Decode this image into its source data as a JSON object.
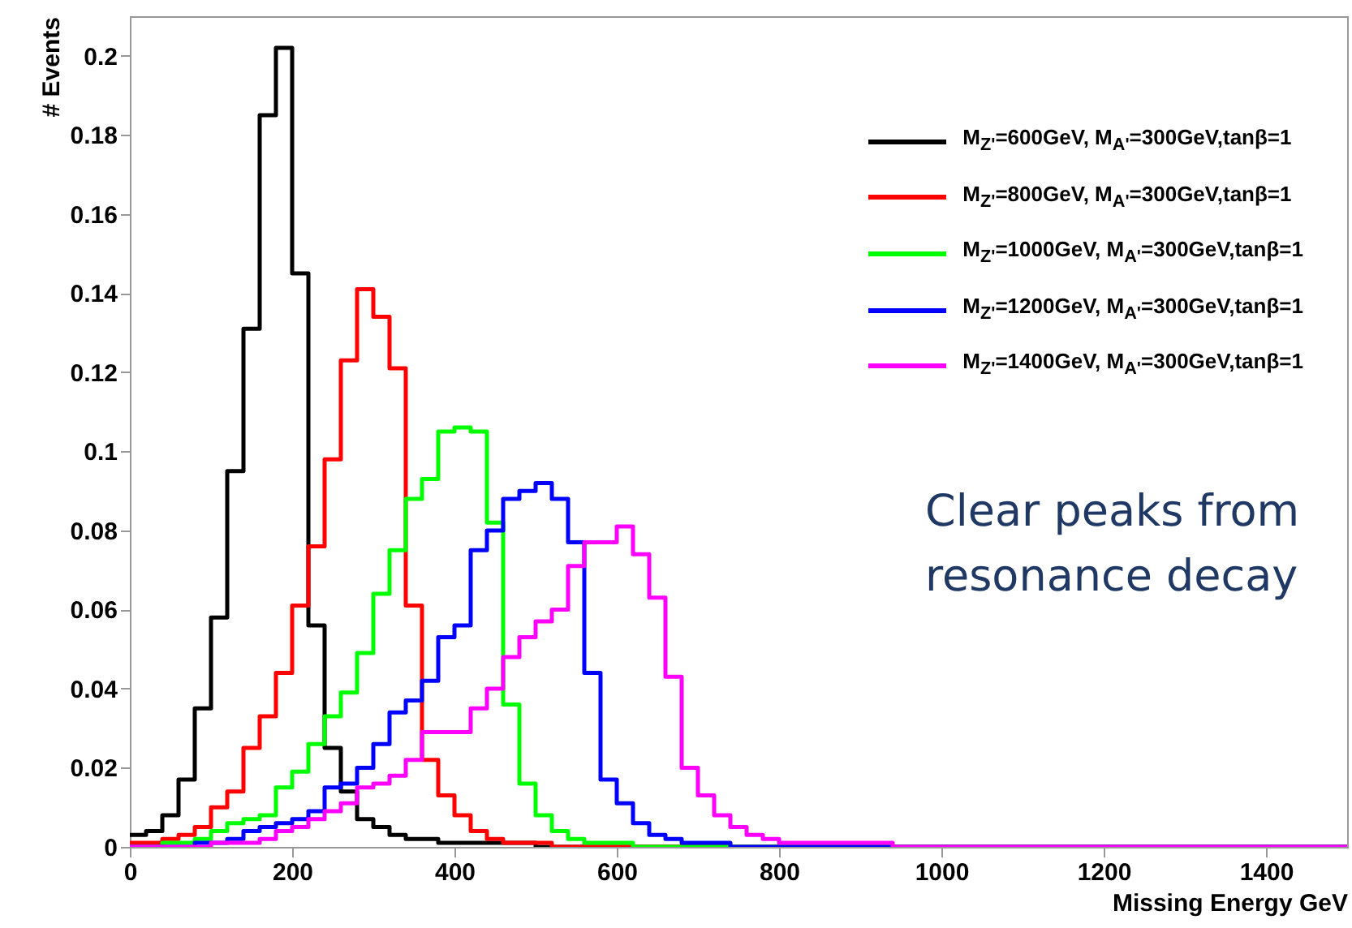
{
  "chart_data": {
    "type": "histogram",
    "xlabel": "Missing Energy GeV",
    "ylabel": "# Events",
    "bins": [
      0,
      20,
      40,
      60,
      80,
      100,
      120,
      140,
      160,
      180,
      200,
      220,
      240,
      260,
      280,
      300,
      320,
      340,
      360,
      380,
      400,
      420,
      440,
      460,
      480,
      500,
      520,
      540,
      560,
      580,
      600,
      620,
      640,
      660,
      680,
      700,
      720,
      740,
      760,
      780,
      800,
      820,
      840,
      860,
      880,
      900,
      920,
      940,
      960,
      980,
      1000,
      1020,
      1040,
      1060,
      1080,
      1100,
      1120,
      1140,
      1160,
      1180,
      1200,
      1220,
      1240,
      1260,
      1280,
      1300,
      1320,
      1340,
      1360,
      1380,
      1400,
      1420,
      1440,
      1460,
      1480,
      1500
    ],
    "series": [
      {
        "name": "M$_{Z'}$=600GeV, M$_{A'}$=300GeV,tanβ=1",
        "color": "#000000",
        "values": [
          0.003,
          0.004,
          0.008,
          0.017,
          0.035,
          0.058,
          0.095,
          0.131,
          0.185,
          0.202,
          0.145,
          0.056,
          0.025,
          0.014,
          0.007,
          0.005,
          0.003,
          0.002,
          0.002,
          0.001,
          0.001,
          0.001,
          0.001,
          0.001,
          0.001,
          0,
          0,
          0,
          0,
          0,
          0,
          0,
          0,
          0,
          0,
          0,
          0,
          0,
          0,
          0,
          0,
          0,
          0,
          0,
          0,
          0,
          0,
          0,
          0,
          0,
          0,
          0,
          0,
          0,
          0,
          0,
          0,
          0,
          0,
          0,
          0,
          0,
          0,
          0,
          0,
          0,
          0,
          0,
          0,
          0,
          0,
          0,
          0,
          0,
          0
        ]
      },
      {
        "name": "M$_{Z'}$=800GeV, M$_{A'}$=300GeV,tanβ=1",
        "color": "#ff0000",
        "values": [
          0.001,
          0.001,
          0.002,
          0.003,
          0.005,
          0.01,
          0.014,
          0.025,
          0.033,
          0.044,
          0.061,
          0.076,
          0.098,
          0.123,
          0.141,
          0.134,
          0.121,
          0.061,
          0.022,
          0.013,
          0.008,
          0.004,
          0.002,
          0.001,
          0.001,
          0.001,
          0,
          0,
          0,
          0,
          0,
          0,
          0,
          0,
          0,
          0,
          0,
          0,
          0,
          0,
          0,
          0,
          0,
          0,
          0,
          0,
          0,
          0,
          0,
          0,
          0,
          0,
          0,
          0,
          0,
          0,
          0,
          0,
          0,
          0,
          0,
          0,
          0,
          0,
          0,
          0,
          0,
          0,
          0,
          0,
          0,
          0,
          0,
          0,
          0
        ]
      },
      {
        "name": "M$_{Z'}$=1000GeV, M$_{A'}$=300GeV,tanβ=1",
        "color": "#00ff00",
        "values": [
          0,
          0,
          0.001,
          0.001,
          0.002,
          0.004,
          0.006,
          0.007,
          0.008,
          0.015,
          0.019,
          0.026,
          0.033,
          0.039,
          0.049,
          0.064,
          0.075,
          0.088,
          0.093,
          0.105,
          0.106,
          0.105,
          0.082,
          0.036,
          0.016,
          0.008,
          0.004,
          0.002,
          0.001,
          0.001,
          0.001,
          0,
          0,
          0,
          0,
          0,
          0,
          0,
          0,
          0,
          0,
          0,
          0,
          0,
          0,
          0,
          0,
          0,
          0,
          0,
          0,
          0,
          0,
          0,
          0,
          0,
          0,
          0,
          0,
          0,
          0,
          0,
          0,
          0,
          0,
          0,
          0,
          0,
          0,
          0,
          0,
          0,
          0,
          0,
          0
        ]
      },
      {
        "name": "M$_{Z'}$=1200GeV, M$_{A'}$=300GeV,tanβ=1",
        "color": "#0000ff",
        "values": [
          0,
          0,
          0,
          0,
          0.001,
          0.001,
          0.002,
          0.004,
          0.005,
          0.006,
          0.007,
          0.009,
          0.015,
          0.016,
          0.02,
          0.026,
          0.034,
          0.037,
          0.042,
          0.053,
          0.056,
          0.075,
          0.08,
          0.088,
          0.09,
          0.092,
          0.088,
          0.077,
          0.044,
          0.017,
          0.011,
          0.006,
          0.003,
          0.002,
          0.001,
          0.001,
          0.001,
          0,
          0,
          0,
          0,
          0,
          0,
          0,
          0,
          0,
          0,
          0,
          0,
          0,
          0,
          0,
          0,
          0,
          0,
          0,
          0,
          0,
          0,
          0,
          0,
          0,
          0,
          0,
          0,
          0,
          0,
          0,
          0,
          0,
          0,
          0,
          0,
          0,
          0
        ]
      },
      {
        "name": "M$_{Z'}$=1400GeV, M$_{A'}$=300GeV,tanβ=1",
        "color": "#ff00ff",
        "values": [
          0,
          0,
          0,
          0,
          0,
          0.001,
          0.001,
          0.001,
          0.002,
          0.004,
          0.005,
          0.007,
          0.009,
          0.011,
          0.015,
          0.016,
          0.018,
          0.022,
          0.029,
          0.029,
          0.029,
          0.035,
          0.04,
          0.048,
          0.053,
          0.057,
          0.06,
          0.071,
          0.077,
          0.077,
          0.081,
          0.074,
          0.063,
          0.043,
          0.02,
          0.013,
          0.008,
          0.005,
          0.003,
          0.002,
          0.001,
          0.001,
          0.001,
          0.001,
          0.001,
          0.001,
          0.001,
          0,
          0,
          0,
          0,
          0,
          0,
          0,
          0,
          0,
          0,
          0,
          0,
          0,
          0,
          0,
          0,
          0,
          0,
          0,
          0,
          0,
          0,
          0,
          0,
          0,
          0,
          0,
          0
        ]
      }
    ],
    "xlim": [
      0,
      1500
    ],
    "xticks": [
      0,
      200,
      400,
      600,
      800,
      1000,
      1200,
      1400
    ],
    "ylim": [
      0,
      0.21
    ],
    "yticks": [
      0,
      0.02,
      0.04,
      0.06,
      0.08,
      0.1,
      0.12,
      0.14,
      0.16,
      0.18,
      0.2
    ],
    "legend": "top right",
    "annotations": [
      "Clear peaks from resonance decay"
    ]
  }
}
